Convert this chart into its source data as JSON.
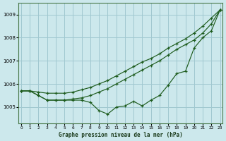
{
  "title": "Graphe pression niveau de la mer (hPa)",
  "bg_color": "#cce8ec",
  "grid_color": "#a0c8d0",
  "line_color": "#1e5c1e",
  "xlim": [
    -0.3,
    23.3
  ],
  "ylim": [
    1004.3,
    1009.5
  ],
  "yticks": [
    1005,
    1006,
    1007,
    1008,
    1009
  ],
  "xticks": [
    0,
    1,
    2,
    3,
    4,
    5,
    6,
    7,
    8,
    9,
    10,
    11,
    12,
    13,
    14,
    15,
    16,
    17,
    18,
    19,
    20,
    21,
    22,
    23
  ],
  "series1": [
    1005.7,
    1005.7,
    1005.5,
    1005.3,
    1005.3,
    1005.3,
    1005.3,
    1005.3,
    1005.2,
    1004.85,
    1004.7,
    1005.0,
    1005.05,
    1005.25,
    1005.05,
    1005.3,
    1005.5,
    1005.95,
    1006.45,
    1006.55,
    1007.55,
    1008.0,
    1008.3,
    1009.2
  ],
  "series2": [
    1005.7,
    1005.7,
    1005.5,
    1005.3,
    1005.3,
    1005.3,
    1005.35,
    1005.4,
    1005.5,
    1005.65,
    1005.8,
    1006.0,
    1006.2,
    1006.4,
    1006.6,
    1006.8,
    1007.0,
    1007.25,
    1007.5,
    1007.7,
    1007.9,
    1008.2,
    1008.6,
    1009.2
  ],
  "series3": [
    1005.7,
    1005.7,
    1005.65,
    1005.6,
    1005.6,
    1005.6,
    1005.65,
    1005.75,
    1005.85,
    1006.0,
    1006.15,
    1006.35,
    1006.55,
    1006.75,
    1006.95,
    1007.1,
    1007.3,
    1007.55,
    1007.75,
    1007.95,
    1008.2,
    1008.5,
    1008.85,
    1009.2
  ]
}
